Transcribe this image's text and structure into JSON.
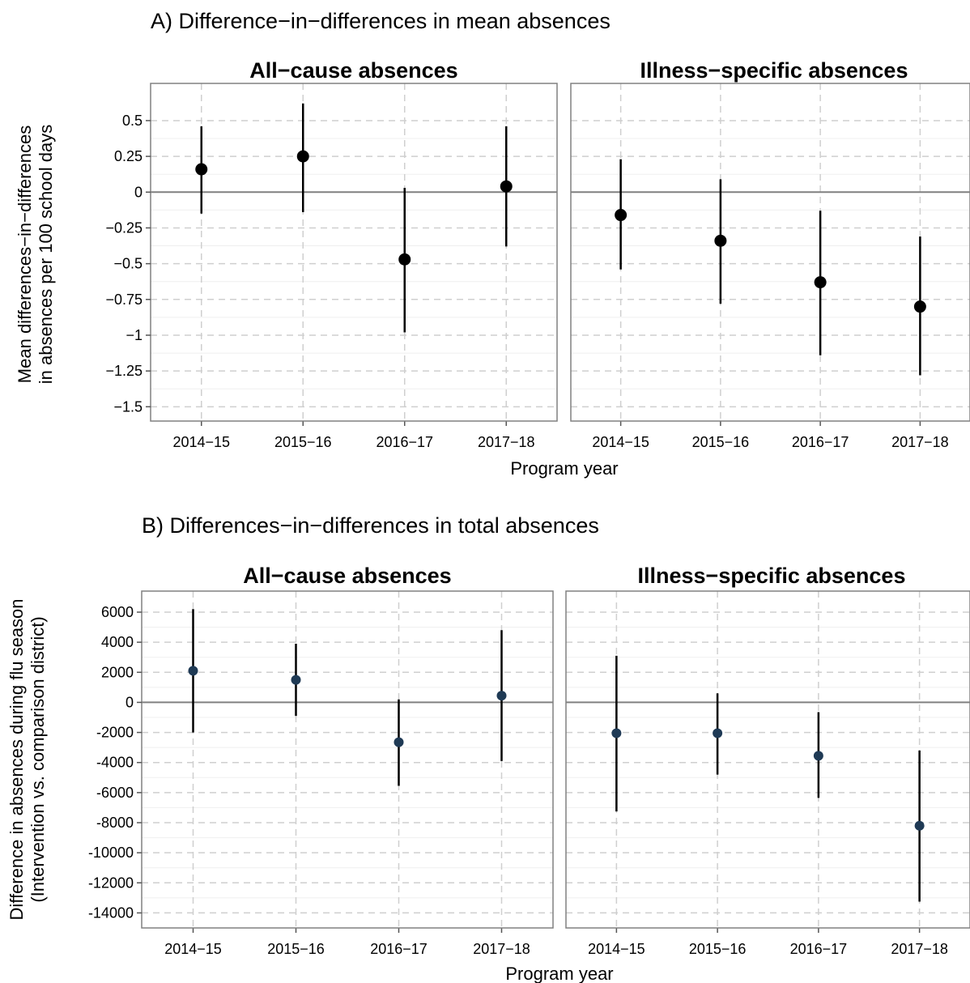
{
  "chart_data": [
    {
      "type": "errorbar",
      "title": "A) Difference−in−differences in mean absences",
      "ylabel_line1": "Mean differences−in−differences",
      "ylabel_line2": "in absences per 100 school days",
      "xlabel": "Program year",
      "categories": [
        "2014−15",
        "2015−16",
        "2016−17",
        "2017−18"
      ],
      "ylim": [
        -1.6,
        0.76
      ],
      "yticks": [
        0.5,
        0.25,
        0,
        -0.25,
        -0.5,
        -0.75,
        -1,
        -1.25,
        -1.5
      ],
      "ytick_labels": [
        "0.5",
        "0.25",
        "0",
        "−0.25",
        "−0.5",
        "−0.75",
        "−1",
        "−1.25",
        "−1.5"
      ],
      "reference_line": 0,
      "grid": true,
      "panels": [
        {
          "title": "All−cause absences",
          "estimates": [
            0.16,
            0.25,
            -0.47,
            0.04
          ],
          "lower": [
            -0.15,
            -0.14,
            -0.98,
            -0.38
          ],
          "upper": [
            0.46,
            0.62,
            0.03,
            0.46
          ]
        },
        {
          "title": "Illness−specific absences",
          "estimates": [
            -0.16,
            -0.34,
            -0.63,
            -0.8
          ],
          "lower": [
            -0.54,
            -0.78,
            -1.14,
            -1.28
          ],
          "upper": [
            0.23,
            0.09,
            -0.13,
            -0.31
          ]
        }
      ],
      "point_color": "#000000"
    },
    {
      "type": "errorbar",
      "title": "B) Differences−in−differences in total absences",
      "ylabel_line1": "Difference in absences during flu season",
      "ylabel_line2": "(Intervention vs. comparison district)",
      "xlabel": "Program year",
      "categories": [
        "2014−15",
        "2015−16",
        "2016−17",
        "2017−18"
      ],
      "ylim": [
        -15000,
        7400
      ],
      "yticks": [
        6000,
        4000,
        2000,
        0,
        -2000,
        -4000,
        -6000,
        -8000,
        -10000,
        -12000,
        -14000
      ],
      "ytick_labels": [
        "6000",
        "4000",
        "2000",
        "0",
        "-2000",
        "-4000",
        "-6000",
        "-8000",
        "-10000",
        "-12000",
        "-14000"
      ],
      "reference_line": 0,
      "grid": true,
      "panels": [
        {
          "title": "All−cause absences",
          "estimates": [
            2100,
            1500,
            -2650,
            450
          ],
          "lower": [
            -2000,
            -900,
            -5550,
            -3900
          ],
          "upper": [
            6200,
            3900,
            200,
            4800
          ]
        },
        {
          "title": "Illness−specific absences",
          "estimates": [
            -2050,
            -2050,
            -3550,
            -8200
          ],
          "lower": [
            -7250,
            -4800,
            -6350,
            -13250
          ],
          "upper": [
            3100,
            600,
            -650,
            -3200
          ]
        }
      ],
      "point_color": "#1f3a55"
    }
  ]
}
